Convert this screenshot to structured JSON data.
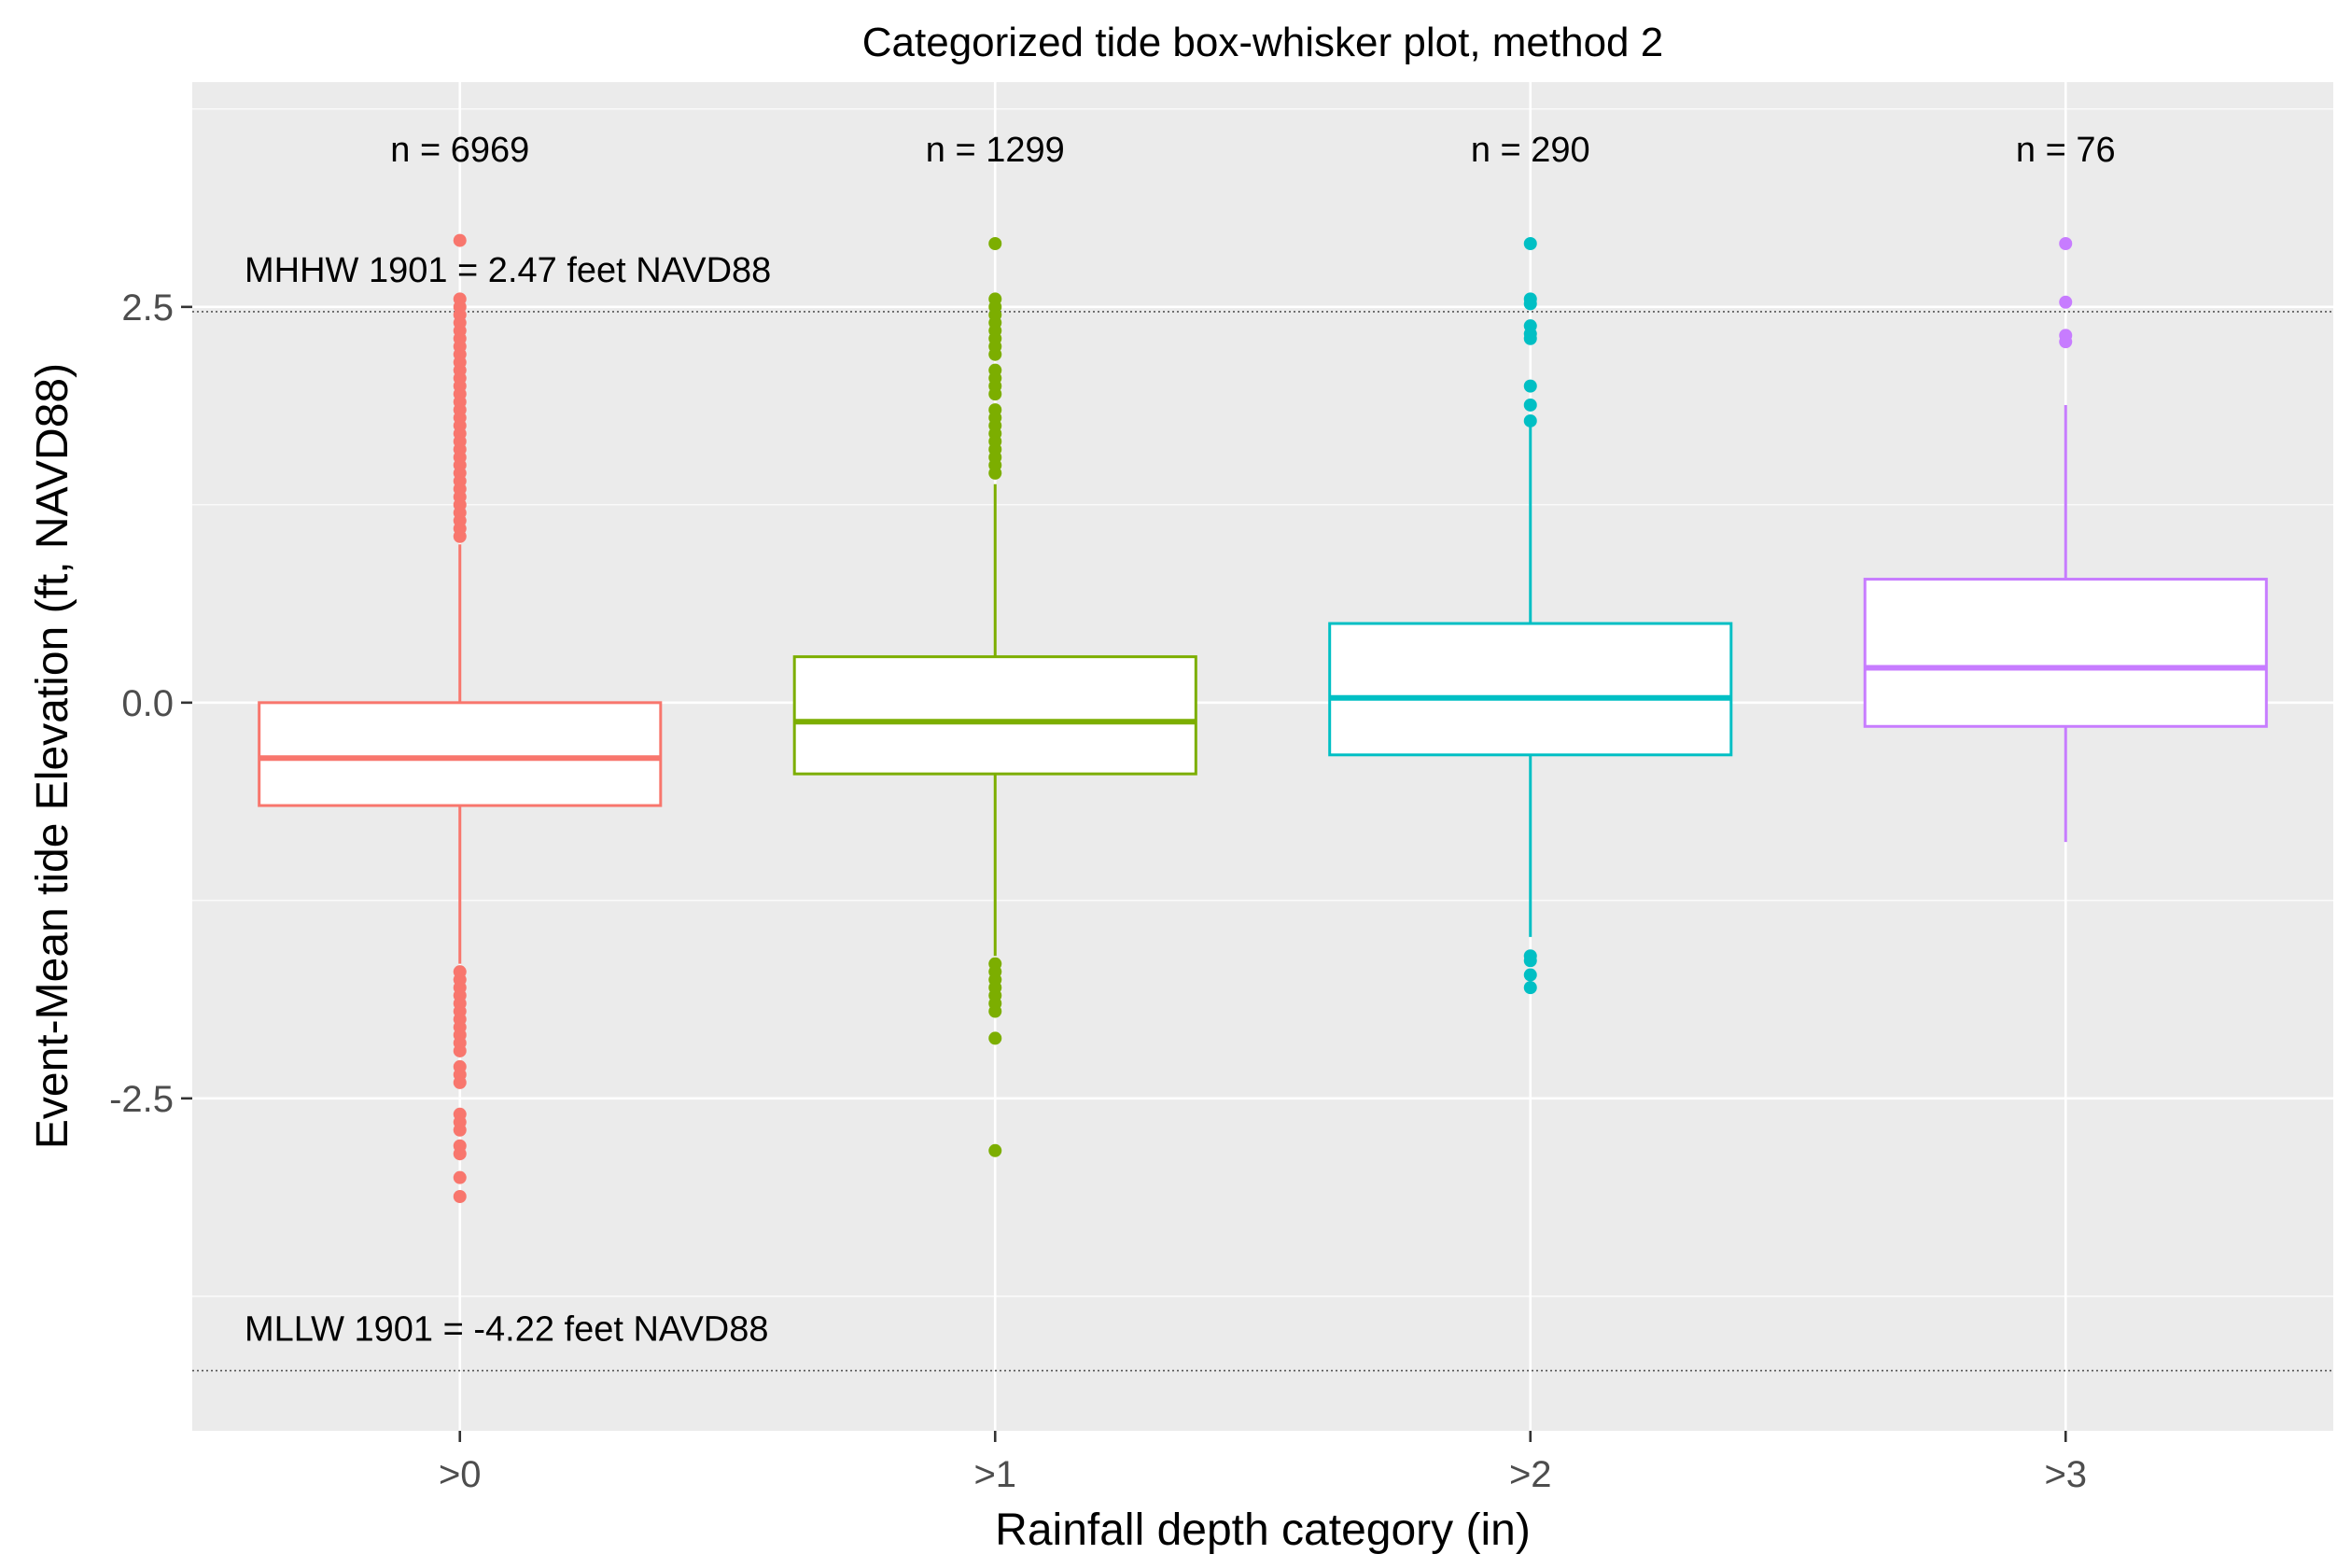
{
  "chart_data": {
    "type": "boxplot",
    "title": "Categorized tide box-whisker plot, method 2",
    "xlabel": "Rainfall depth category (in)",
    "ylabel": "Event-Mean tide Elevation (ft, NAVD88)",
    "ylim": [
      -4.6,
      3.92
    ],
    "yticks": [
      -2.5,
      0.0,
      2.5
    ],
    "ytick_labels": [
      "-2.5",
      "0.0",
      "2.5"
    ],
    "grid": true,
    "legend": "none",
    "categories": [
      ">0",
      ">1",
      ">2",
      ">3"
    ],
    "colors": [
      "#f8766d",
      "#7cae00",
      "#00bfc4",
      "#c77cff"
    ],
    "boxes": [
      {
        "category": ">0",
        "count_label": "n = 6969",
        "whisker_low": -1.65,
        "q1": -0.65,
        "median": -0.35,
        "q3": 0.0,
        "whisker_high": 1.0,
        "outliers": [
          2.92,
          2.55,
          2.5,
          2.45,
          2.4,
          2.35,
          2.3,
          2.25,
          2.2,
          2.15,
          2.1,
          2.05,
          2.0,
          1.95,
          1.9,
          1.85,
          1.8,
          1.75,
          1.7,
          1.65,
          1.6,
          1.55,
          1.5,
          1.45,
          1.4,
          1.35,
          1.3,
          1.25,
          1.2,
          1.15,
          1.1,
          1.05,
          -1.7,
          -1.75,
          -1.8,
          -1.85,
          -1.9,
          -1.95,
          -2.0,
          -2.05,
          -2.1,
          -2.15,
          -2.2,
          -2.3,
          -2.35,
          -2.4,
          -2.6,
          -2.65,
          -2.7,
          -2.8,
          -2.85,
          -3.0,
          -3.12
        ]
      },
      {
        "category": ">1",
        "count_label": "n = 1299",
        "whisker_low": -1.6,
        "q1": -0.45,
        "median": -0.12,
        "q3": 0.29,
        "whisker_high": 1.38,
        "outliers": [
          2.9,
          2.55,
          2.5,
          2.45,
          2.4,
          2.35,
          2.3,
          2.25,
          2.2,
          2.1,
          2.05,
          2.0,
          1.95,
          1.85,
          1.8,
          1.75,
          1.7,
          1.65,
          1.6,
          1.55,
          1.5,
          1.45,
          -1.65,
          -1.7,
          -1.75,
          -1.8,
          -1.85,
          -1.9,
          -1.95,
          -2.12,
          -2.83
        ]
      },
      {
        "category": ">2",
        "count_label": "n = 290",
        "whisker_low": -1.48,
        "q1": -0.33,
        "median": 0.03,
        "q3": 0.5,
        "whisker_high": 1.75,
        "outliers": [
          2.9,
          2.55,
          2.52,
          2.38,
          2.33,
          2.3,
          2.0,
          1.88,
          1.78,
          -1.6,
          -1.63,
          -1.72,
          -1.8
        ],
        "note": ""
      },
      {
        "category": ">3",
        "count_label": "n = 76",
        "whisker_low": -0.88,
        "q1": -0.15,
        "median": 0.22,
        "q3": 0.78,
        "whisker_high": 1.88,
        "outliers": [
          2.9,
          2.53,
          2.32,
          2.28
        ]
      }
    ],
    "reference_lines": [
      {
        "value": 2.47,
        "label": "MHHW 1901 = 2.47 feet NAVD88"
      },
      {
        "value": -4.22,
        "label": "MLLW 1901 = -4.22 feet NAVD88"
      }
    ]
  }
}
